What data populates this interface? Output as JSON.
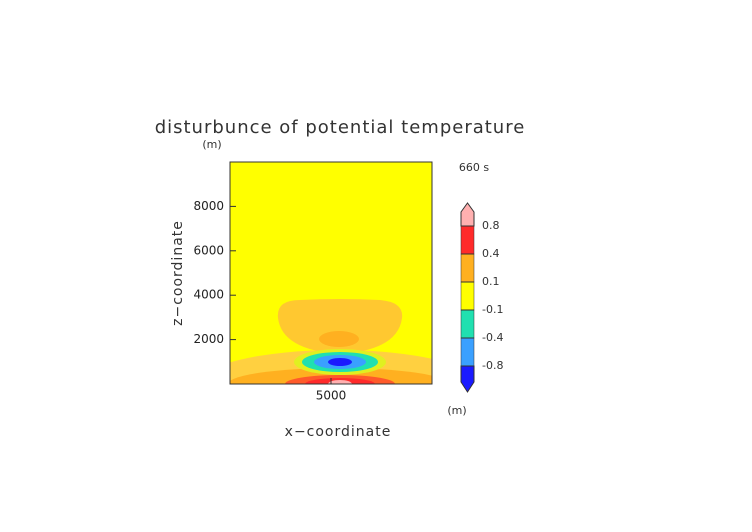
{
  "chart_data": {
    "type": "contour",
    "title": "disturbunce of potential temperature",
    "x_label": "x−coordinate",
    "y_label": "z−coordinate",
    "x_unit": "(m)",
    "y_unit": "(m)",
    "annotation": "660 s",
    "xlim": [
      0,
      10000
    ],
    "xticks": [
      5000
    ],
    "ylim": [
      0,
      10000
    ],
    "yticks": [
      2000,
      4000,
      6000,
      8000
    ],
    "colorbar": {
      "ticks": [
        -0.8,
        -0.4,
        -0.1,
        0.1,
        0.4,
        0.8
      ],
      "colors": [
        "#1a1aff",
        "#3aa0ff",
        "#20e0b0",
        "#ffff00",
        "#ffb020",
        "#ff2a2a",
        "#ffb0b0"
      ]
    }
  }
}
